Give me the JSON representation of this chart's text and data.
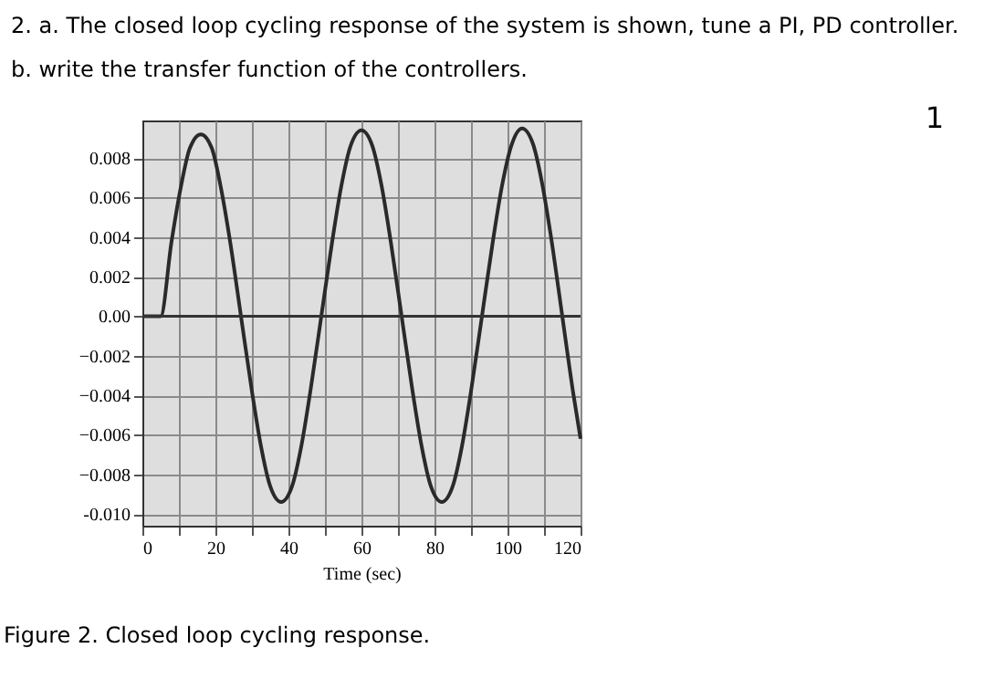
{
  "chart_data": {
    "type": "line",
    "title": "2.  a. The closed loop cycling response of the system is shown, tune a PI, PD controller.",
    "subtitle": "b. write the transfer function of the controllers.",
    "xlabel": "Time (sec)",
    "annotations": [
      "Figure 2. Closed loop cycling response.",
      "1"
    ],
    "x": [
      0,
      5,
      8,
      10.5,
      13,
      16,
      19,
      21.5,
      24,
      27,
      30,
      32.5,
      35,
      38,
      41,
      43.5,
      46,
      49,
      52,
      54.5,
      57,
      60,
      63,
      65.5,
      68,
      71,
      74,
      76.5,
      79,
      82,
      85,
      87.5,
      90,
      93,
      96,
      98.5,
      101,
      104,
      107,
      109.5,
      112,
      115,
      118,
      120
    ],
    "series": [
      {
        "color": "#2a2a2a",
        "values": [
          0,
          0,
          0.0038,
          0.0065,
          0.0085,
          0.0092,
          0.0085,
          0.0065,
          0.0038,
          0,
          -0.0038,
          -0.0066,
          -0.0086,
          -0.0094,
          -0.0086,
          -0.0066,
          -0.0038,
          0,
          0.0038,
          0.0066,
          0.0086,
          0.0094,
          0.0086,
          0.0066,
          0.0038,
          0,
          -0.0038,
          -0.0066,
          -0.0086,
          -0.0094,
          -0.0086,
          -0.0066,
          -0.0038,
          0,
          0.0038,
          0.0066,
          0.0086,
          0.0095,
          0.0087,
          0.0067,
          0.0039,
          0,
          -0.0039,
          -0.0062
        ]
      }
    ],
    "xlim": [
      0,
      120
    ],
    "xticks": [
      0,
      {
        "value": 10,
        "label": null
      },
      20,
      {
        "value": 30,
        "label": null
      },
      40,
      {
        "value": 50,
        "label": null
      },
      60,
      {
        "value": 70,
        "label": null
      },
      80,
      {
        "value": 90,
        "label": null
      },
      100,
      {
        "value": 110,
        "label": null
      },
      120
    ],
    "ylim": [
      -0.0106,
      0.0099
    ],
    "yticks": [
      0.008,
      0.006,
      0.004,
      0.002,
      {
        "value": 0,
        "label": "0.00"
      },
      -0.002,
      -0.004,
      -0.006,
      -0.008,
      {
        "value": -0.01,
        "label": "-0.010"
      }
    ],
    "ref_lines": [
      {
        "axis": "y",
        "value": 0,
        "color": "#333333"
      }
    ],
    "grid": true,
    "marker": "none",
    "line_style": "solid"
  }
}
